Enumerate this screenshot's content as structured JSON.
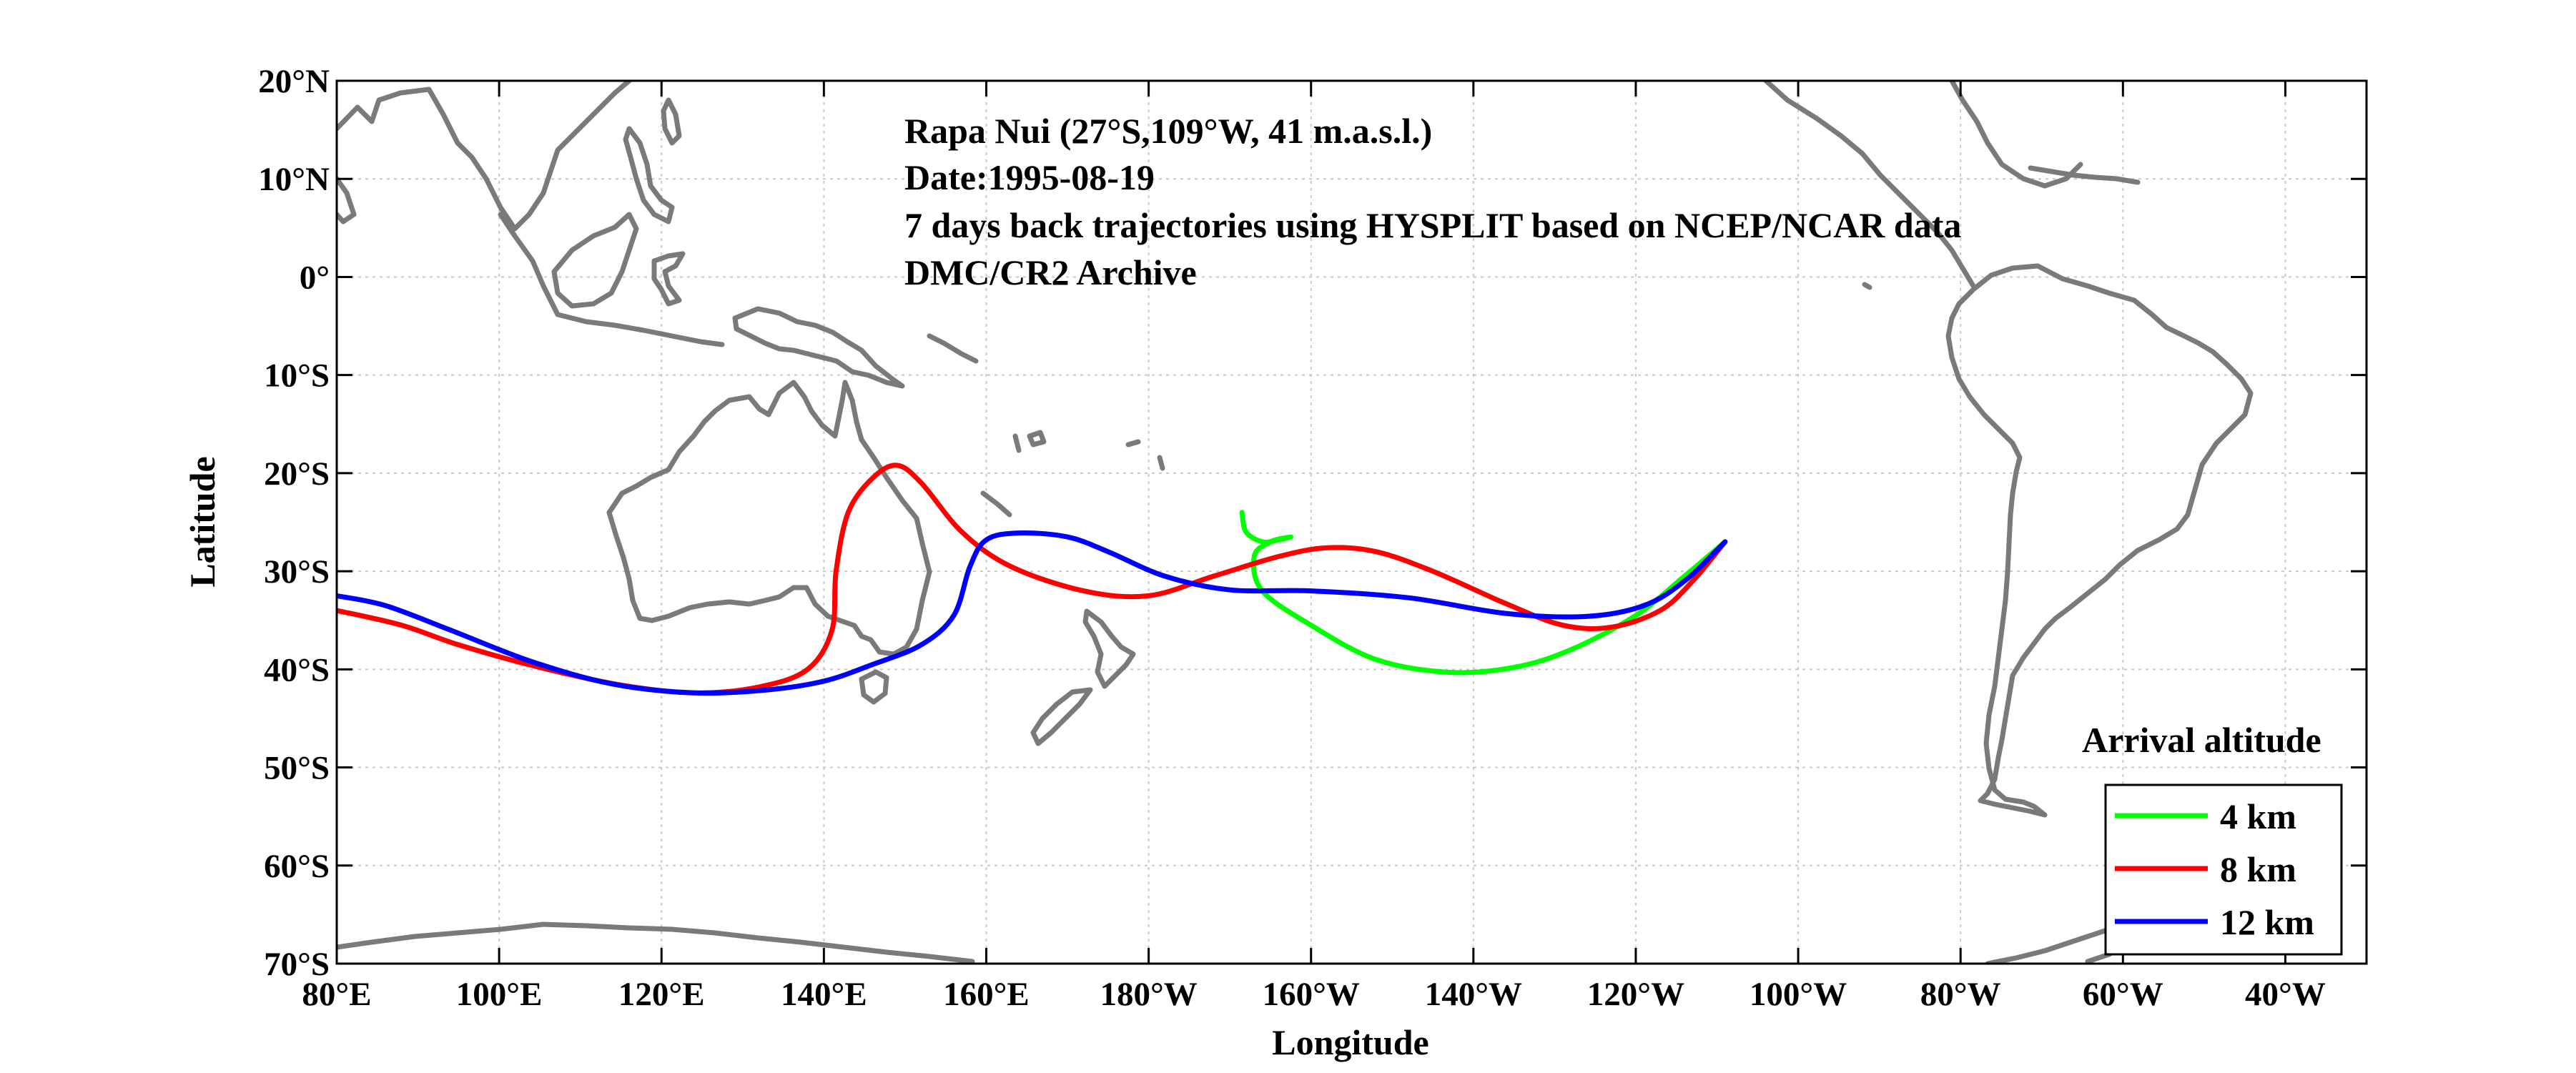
{
  "map": {
    "info_lines": [
      "Rapa Nui (27°S,109°W, 41 m.a.s.l.)",
      "Date:1995-08-19",
      "7 days back trajectories using HYSPLIT based on NCEP/NCAR data",
      "DMC/CR2 Archive"
    ],
    "xlabel": "Longitude",
    "ylabel": "Latitude",
    "lon_range": [
      80,
      330
    ],
    "lat_range": [
      -70,
      20
    ],
    "x_ticks": [
      {
        "lon": 80,
        "label": "80°E"
      },
      {
        "lon": 100,
        "label": "100°E"
      },
      {
        "lon": 120,
        "label": "120°E"
      },
      {
        "lon": 140,
        "label": "140°E"
      },
      {
        "lon": 160,
        "label": "160°E"
      },
      {
        "lon": 180,
        "label": "180°W"
      },
      {
        "lon": 200,
        "label": "160°W"
      },
      {
        "lon": 220,
        "label": "140°W"
      },
      {
        "lon": 240,
        "label": "120°W"
      },
      {
        "lon": 260,
        "label": "100°W"
      },
      {
        "lon": 280,
        "label": "80°W"
      },
      {
        "lon": 300,
        "label": "60°W"
      },
      {
        "lon": 320,
        "label": "40°W"
      }
    ],
    "y_ticks": [
      {
        "lat": 20,
        "label": "20°N"
      },
      {
        "lat": 10,
        "label": "10°N"
      },
      {
        "lat": 0,
        "label": "0°"
      },
      {
        "lat": -10,
        "label": "10°S"
      },
      {
        "lat": -20,
        "label": "20°S"
      },
      {
        "lat": -30,
        "label": "30°S"
      },
      {
        "lat": -40,
        "label": "40°S"
      },
      {
        "lat": -50,
        "label": "50°S"
      },
      {
        "lat": -60,
        "label": "60°S"
      },
      {
        "lat": -70,
        "label": "70°S"
      }
    ],
    "grid": true,
    "coast_color": "#7a7a7a"
  },
  "legend": {
    "title": "Arrival altitude",
    "placement": "bottom-right",
    "items": [
      {
        "label": "4 km",
        "color": "#00ff00"
      },
      {
        "label": "8 km",
        "color": "#ff0000"
      },
      {
        "label": "12 km",
        "color": "#0000ff"
      }
    ]
  },
  "chart_data": {
    "type": "line",
    "xlabel": "Longitude",
    "ylabel": "Latitude",
    "xlim": [
      80,
      330
    ],
    "ylim": [
      -70,
      20
    ],
    "grid": true,
    "series": [
      {
        "name": "4 km",
        "color": "#00ff00",
        "points": [
          [
            251,
            -27.0
          ],
          [
            246,
            -30.5
          ],
          [
            240,
            -34.5
          ],
          [
            232,
            -38.0
          ],
          [
            225,
            -39.8
          ],
          [
            217,
            -40.3
          ],
          [
            208,
            -39.0
          ],
          [
            200,
            -35.5
          ],
          [
            194,
            -32.0
          ],
          [
            193,
            -28.5
          ],
          [
            195,
            -27.0
          ],
          [
            197.5,
            -26.5
          ],
          [
            196,
            -26.8
          ],
          [
            194,
            -27.0
          ],
          [
            192,
            -26.0
          ],
          [
            191.5,
            -24.0
          ]
        ]
      },
      {
        "name": "8 km",
        "color": "#ff0000",
        "points": [
          [
            251,
            -27.0
          ],
          [
            247,
            -31.0
          ],
          [
            243,
            -34.0
          ],
          [
            237,
            -35.7
          ],
          [
            231,
            -35.5
          ],
          [
            224,
            -33.3
          ],
          [
            215,
            -30.0
          ],
          [
            208,
            -28.0
          ],
          [
            202,
            -27.6
          ],
          [
            196,
            -28.5
          ],
          [
            188,
            -30.5
          ],
          [
            180,
            -32.5
          ],
          [
            172,
            -32.0
          ],
          [
            163,
            -29.5
          ],
          [
            157,
            -26.0
          ],
          [
            152,
            -21.0
          ],
          [
            149,
            -19.2
          ],
          [
            146,
            -20.5
          ],
          [
            143,
            -24.0
          ],
          [
            141.5,
            -30.0
          ],
          [
            141,
            -36.0
          ],
          [
            138,
            -40.0
          ],
          [
            132,
            -41.8
          ],
          [
            124,
            -42.4
          ],
          [
            115,
            -41.6
          ],
          [
            105,
            -39.8
          ],
          [
            95,
            -37.5
          ],
          [
            88,
            -35.5
          ],
          [
            80,
            -34.0
          ]
        ]
      },
      {
        "name": "12 km",
        "color": "#0000ff",
        "points": [
          [
            251,
            -27.0
          ],
          [
            246,
            -31.0
          ],
          [
            241,
            -33.5
          ],
          [
            234,
            -34.6
          ],
          [
            224,
            -34.3
          ],
          [
            212,
            -32.7
          ],
          [
            200,
            -32.0
          ],
          [
            190,
            -31.9
          ],
          [
            182,
            -30.5
          ],
          [
            175,
            -28.0
          ],
          [
            170,
            -26.5
          ],
          [
            164,
            -26.1
          ],
          [
            160,
            -26.8
          ],
          [
            158,
            -29.5
          ],
          [
            156,
            -34.5
          ],
          [
            152,
            -37.5
          ],
          [
            146,
            -39.5
          ],
          [
            140,
            -41.2
          ],
          [
            133,
            -42.1
          ],
          [
            124,
            -42.4
          ],
          [
            114,
            -41.5
          ],
          [
            104,
            -39.2
          ],
          [
            94,
            -36.0
          ],
          [
            86,
            -33.5
          ],
          [
            80,
            -32.5
          ]
        ]
      }
    ]
  }
}
